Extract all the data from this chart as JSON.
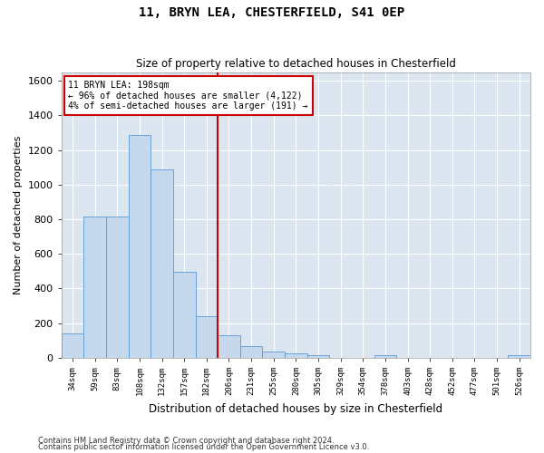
{
  "title": "11, BRYN LEA, CHESTERFIELD, S41 0EP",
  "subtitle": "Size of property relative to detached houses in Chesterfield",
  "xlabel": "Distribution of detached houses by size in Chesterfield",
  "ylabel": "Number of detached properties",
  "footnote1": "Contains HM Land Registry data © Crown copyright and database right 2024.",
  "footnote2": "Contains public sector information licensed under the Open Government Licence v3.0.",
  "bar_color": "#c5d8ec",
  "bar_edge_color": "#5b9bd5",
  "grid_color": "#c8d4e8",
  "bg_color": "#dce6f1",
  "annotation_box_color": "#cc0000",
  "vline_color": "#cc0000",
  "categories": [
    "34sqm",
    "59sqm",
    "83sqm",
    "108sqm",
    "132sqm",
    "157sqm",
    "182sqm",
    "206sqm",
    "231sqm",
    "255sqm",
    "280sqm",
    "305sqm",
    "329sqm",
    "354sqm",
    "378sqm",
    "403sqm",
    "428sqm",
    "452sqm",
    "477sqm",
    "501sqm",
    "526sqm"
  ],
  "values": [
    140,
    815,
    815,
    1285,
    1090,
    495,
    240,
    130,
    65,
    38,
    27,
    15,
    0,
    0,
    15,
    0,
    0,
    0,
    0,
    0,
    15
  ],
  "ylim": [
    0,
    1650
  ],
  "yticks": [
    0,
    200,
    400,
    600,
    800,
    1000,
    1200,
    1400,
    1600
  ],
  "property_label": "11 BRYN LEA: 198sqm",
  "annotation_line1": "← 96% of detached houses are smaller (4,122)",
  "annotation_line2": "4% of semi-detached houses are larger (191) →",
  "vline_x_index": 6.5,
  "figsize": [
    6.0,
    5.0
  ],
  "dpi": 100
}
